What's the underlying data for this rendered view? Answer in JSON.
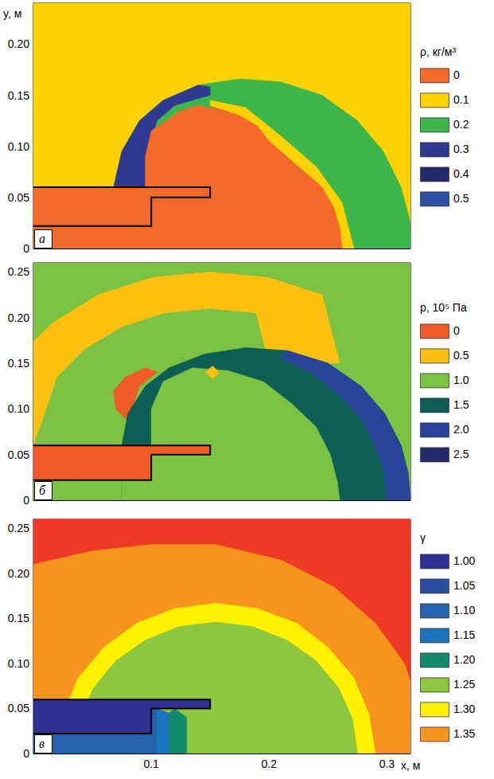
{
  "chart_data": [
    {
      "type": "contour",
      "panel": "а",
      "y_label": "y, м",
      "tick_labels": "y",
      "grid": false,
      "xlim": [
        0,
        0.32
      ],
      "xticks": [
        0.1,
        0.2,
        0.3
      ],
      "ylim": [
        0,
        0.24
      ],
      "yticks": [
        0,
        0.05,
        {
          "value": 0.1,
          "label": "0.10"
        },
        0.15,
        {
          "value": 0.2,
          "label": "0.20"
        }
      ],
      "color_bar": {
        "title": "ρ, кг/м³",
        "levels": [
          0,
          0.1,
          0.2,
          0.3,
          0.4,
          0.5
        ],
        "colors": [
          "#f26b2b",
          "#ffd200",
          "#3cb54a",
          "#2e3a92",
          "#25286b",
          "#2f4fa5"
        ]
      },
      "regions": [
        {
          "value": 0.1,
          "points": [
            [
              0,
              0
            ],
            [
              0.32,
              0
            ],
            [
              0.32,
              0.24
            ],
            [
              0,
              0.24
            ]
          ]
        },
        {
          "value": 0.2,
          "points": [
            [
              0.068,
              0.06
            ],
            [
              0.075,
              0.095
            ],
            [
              0.09,
              0.125
            ],
            [
              0.11,
              0.145
            ],
            [
              0.14,
              0.16
            ],
            [
              0.175,
              0.166
            ],
            [
              0.21,
              0.163
            ],
            [
              0.245,
              0.15
            ],
            [
              0.275,
              0.125
            ],
            [
              0.297,
              0.095
            ],
            [
              0.312,
              0.06
            ],
            [
              0.319,
              0.03
            ],
            [
              0.322,
              0
            ],
            [
              0.068,
              0
            ]
          ]
        },
        {
          "value": 0.3,
          "points": [
            [
              0.068,
              0.06
            ],
            [
              0.075,
              0.095
            ],
            [
              0.09,
              0.125
            ],
            [
              0.11,
              0.145
            ],
            [
              0.14,
              0.16
            ],
            [
              0.15,
              0.158
            ],
            [
              0.15,
              0.15
            ],
            [
              0.12,
              0.14
            ],
            [
              0.105,
              0.125
            ],
            [
              0.098,
              0.1
            ],
            [
              0.095,
              0.07
            ],
            [
              0.1,
              0.06
            ]
          ]
        },
        {
          "value": 0.1,
          "points": [
            [
              0.15,
              0.145
            ],
            [
              0.18,
              0.138
            ],
            [
              0.21,
              0.11
            ],
            [
              0.24,
              0.08
            ],
            [
              0.262,
              0.045
            ],
            [
              0.272,
              0
            ],
            [
              0.262,
              0
            ],
            [
              0.255,
              0.04
            ],
            [
              0.23,
              0.075
            ],
            [
              0.2,
              0.105
            ],
            [
              0.175,
              0.13
            ],
            [
              0.15,
              0.14
            ]
          ]
        },
        {
          "value": 0,
          "points": [
            [
              0,
              0
            ],
            [
              0,
              0.06
            ],
            [
              0.095,
              0.06
            ],
            [
              0.095,
              0.09
            ],
            [
              0.1,
              0.115
            ],
            [
              0.115,
              0.127
            ],
            [
              0.125,
              0.135
            ],
            [
              0.14,
              0.14
            ],
            [
              0.16,
              0.136
            ],
            [
              0.175,
              0.13
            ],
            [
              0.19,
              0.12
            ],
            [
              0.2,
              0.105
            ],
            [
              0.215,
              0.09
            ],
            [
              0.23,
              0.075
            ],
            [
              0.245,
              0.06
            ],
            [
              0.255,
              0.04
            ],
            [
              0.26,
              0.02
            ],
            [
              0.262,
              0
            ]
          ]
        }
      ],
      "body": [
        [
          0,
          0.06
        ],
        [
          0.15,
          0.06
        ],
        [
          0.15,
          0.05
        ],
        [
          0.1,
          0.05
        ],
        [
          0.1,
          0.022
        ],
        [
          0,
          0.022
        ]
      ]
    },
    {
      "type": "contour",
      "panel": "б",
      "tick_labels": "y",
      "grid": false,
      "xlim": [
        0,
        0.32
      ],
      "xticks": [
        0.1,
        0.2,
        0.3
      ],
      "ylim": [
        0,
        0.26
      ],
      "yticks": [
        0,
        0.05,
        {
          "value": 0.1,
          "label": "0.10"
        },
        0.15,
        {
          "value": 0.2,
          "label": "0.20"
        },
        0.25
      ],
      "color_bar": {
        "title": "p, 10⁵ Па",
        "levels": [
          0,
          0.5,
          {
            "value": 1,
            "label": "1.0"
          },
          1.5,
          {
            "value": 2,
            "label": "2.0"
          },
          2.5
        ],
        "colors": [
          "#f15a29",
          "#fdc010",
          "#7cc242",
          "#0d5f55",
          "#29439b",
          "#262a6d"
        ]
      },
      "regions": [
        {
          "value": 1,
          "points": [
            [
              0,
              0
            ],
            [
              0.32,
              0
            ],
            [
              0.32,
              0.26
            ],
            [
              0,
              0.26
            ]
          ]
        },
        {
          "value": 0.5,
          "points": [
            [
              -0.04,
              0.06
            ],
            [
              -0.015,
              0.155
            ],
            [
              0.016,
              0.194
            ],
            [
              0.055,
              0.225
            ],
            [
              0.101,
              0.244
            ],
            [
              0.15,
              0.25
            ],
            [
              0.199,
              0.244
            ],
            [
              0.245,
              0.225
            ],
            [
              0.26,
              0.15
            ],
            [
              0.2,
              0.15
            ],
            [
              0.189,
              0.205
            ],
            [
              0.15,
              0.21
            ],
            [
              0.111,
              0.205
            ],
            [
              0.075,
              0.19
            ],
            [
              0.044,
              0.166
            ],
            [
              0.02,
              0.135
            ],
            [
              0,
              0.06
            ]
          ]
        },
        {
          "value": 0,
          "points": [
            [
              0.085,
              0.08
            ],
            [
              0.07,
              0.1
            ],
            [
              0.068,
              0.12
            ],
            [
              0.078,
              0.135
            ],
            [
              0.095,
              0.145
            ],
            [
              0.105,
              0.14
            ],
            [
              0.09,
              0.125
            ],
            [
              0.085,
              0.105
            ],
            [
              0.09,
              0.09
            ]
          ]
        },
        {
          "value": 1.5,
          "points": [
            [
              0.075,
              0.06
            ],
            [
              0.08,
              0.095
            ],
            [
              0.095,
              0.125
            ],
            [
              0.115,
              0.145
            ],
            [
              0.145,
              0.16
            ],
            [
              0.18,
              0.167
            ],
            [
              0.215,
              0.164
            ],
            [
              0.25,
              0.15
            ],
            [
              0.278,
              0.125
            ],
            [
              0.298,
              0.095
            ],
            [
              0.312,
              0.06
            ],
            [
              0.318,
              0.03
            ],
            [
              0.32,
              0
            ],
            [
              0.075,
              0
            ]
          ]
        },
        {
          "value": 2,
          "points": [
            [
              0.215,
              0.164
            ],
            [
              0.25,
              0.15
            ],
            [
              0.278,
              0.125
            ],
            [
              0.298,
              0.095
            ],
            [
              0.312,
              0.06
            ],
            [
              0.318,
              0.03
            ],
            [
              0.32,
              0
            ],
            [
              0.3,
              0
            ],
            [
              0.298,
              0.03
            ],
            [
              0.29,
              0.06
            ],
            [
              0.278,
              0.09
            ],
            [
              0.26,
              0.115
            ],
            [
              0.235,
              0.14
            ],
            [
              0.21,
              0.155
            ]
          ]
        },
        {
          "value": 1,
          "points": [
            [
              0.1,
              0.06
            ],
            [
              0.1,
              0.1
            ],
            [
              0.11,
              0.13
            ],
            [
              0.135,
              0.145
            ],
            [
              0.165,
              0.142
            ],
            [
              0.195,
              0.13
            ],
            [
              0.22,
              0.105
            ],
            [
              0.24,
              0.08
            ],
            [
              0.252,
              0.05
            ],
            [
              0.258,
              0.02
            ],
            [
              0.26,
              0
            ],
            [
              0.075,
              0
            ],
            [
              0.075,
              0.022
            ]
          ]
        },
        {
          "value": 0.5,
          "points": [
            [
              0.146,
              0.14
            ],
            [
              0.152,
              0.133
            ],
            [
              0.158,
              0.14
            ],
            [
              0.152,
              0.147
            ]
          ]
        },
        {
          "value": 0,
          "points": [
            [
              0,
              0.022
            ],
            [
              0.1,
              0.022
            ],
            [
              0.1,
              0.05
            ],
            [
              0.15,
              0.05
            ],
            [
              0.15,
              0.06
            ],
            [
              0,
              0.06
            ]
          ]
        }
      ],
      "body": [
        [
          0,
          0.06
        ],
        [
          0.15,
          0.06
        ],
        [
          0.15,
          0.05
        ],
        [
          0.1,
          0.05
        ],
        [
          0.1,
          0.022
        ],
        [
          0,
          0.022
        ]
      ]
    },
    {
      "type": "contour",
      "panel": "в",
      "x_label": "x, м",
      "grid": false,
      "xlim": [
        0,
        0.32
      ],
      "xticks": [
        0.1,
        0.2,
        0.3
      ],
      "ylim": [
        0,
        0.26
      ],
      "yticks": [
        0,
        0.05,
        {
          "value": 0.1,
          "label": "0.10"
        },
        0.15,
        {
          "value": 0.2,
          "label": "0.20"
        },
        0.25
      ],
      "color_bar": {
        "title": "γ",
        "levels": [
          {
            "value": 1,
            "label": "1.00"
          },
          1.05,
          {
            "value": 1.1,
            "label": "1.10"
          },
          1.15,
          {
            "value": 1.2,
            "label": "1.20"
          },
          1.25,
          {
            "value": 1.3,
            "label": "1.30"
          },
          1.35
        ],
        "colors": [
          "#2e3192",
          "#2b4ea2",
          "#2563af",
          "#1b75bc",
          "#138a6c",
          "#8dc63f",
          "#fff200",
          "#f7941d"
        ]
      },
      "regions": [
        {
          "value": 1.4,
          "color": "#ee3a24",
          "points": [
            [
              0,
              0
            ],
            [
              0.32,
              0
            ],
            [
              0.32,
              0.26
            ],
            [
              0,
              0.26
            ]
          ]
        },
        {
          "value": 1.35,
          "points": [
            [
              0.33,
              0
            ],
            [
              0.325,
              0.06
            ],
            [
              0.315,
              0.1
            ],
            [
              0.29,
              0.145
            ],
            [
              0.255,
              0.185
            ],
            [
              0.21,
              0.215
            ],
            [
              0.155,
              0.232
            ],
            [
              0.1,
              0.232
            ],
            [
              0.05,
              0.225
            ],
            [
              0,
              0.21
            ],
            [
              -0.01,
              0
            ]
          ]
        },
        {
          "value": 1.3,
          "points": [
            [
              0.29,
              0
            ],
            [
              0.285,
              0.043
            ],
            [
              0.272,
              0.084
            ],
            [
              0.25,
              0.118
            ],
            [
              0.223,
              0.145
            ],
            [
              0.19,
              0.161
            ],
            [
              0.155,
              0.167
            ],
            [
              0.12,
              0.161
            ],
            [
              0.088,
              0.145
            ],
            [
              0.06,
              0.118
            ],
            [
              0.038,
              0.084
            ],
            [
              0.025,
              0.043
            ],
            [
              0.02,
              0
            ]
          ]
        },
        {
          "value": 1.25,
          "points": [
            [
              0.275,
              0
            ],
            [
              0.271,
              0.038
            ],
            [
              0.259,
              0.073
            ],
            [
              0.24,
              0.103
            ],
            [
              0.215,
              0.126
            ],
            [
              0.186,
              0.141
            ],
            [
              0.155,
              0.146
            ],
            [
              0.124,
              0.141
            ],
            [
              0.095,
              0.126
            ],
            [
              0.07,
              0.103
            ],
            [
              0.051,
              0.073
            ],
            [
              0.039,
              0.038
            ],
            [
              0.035,
              0
            ]
          ]
        },
        {
          "value": 1.1,
          "points": [
            [
              0,
              0
            ],
            [
              0.105,
              0
            ],
            [
              0.105,
              0.05
            ],
            [
              0,
              0.05
            ]
          ]
        },
        {
          "value": 1.15,
          "points": [
            [
              0.105,
              0
            ],
            [
              0.115,
              0
            ],
            [
              0.115,
              0.045
            ],
            [
              0.105,
              0.05
            ]
          ]
        },
        {
          "value": 1.2,
          "points": [
            [
              0.115,
              0
            ],
            [
              0.13,
              0
            ],
            [
              0.13,
              0.04
            ],
            [
              0.12,
              0.05
            ],
            [
              0.115,
              0.045
            ]
          ]
        },
        {
          "value": 1,
          "points": [
            [
              0,
              0.022
            ],
            [
              0.1,
              0.022
            ],
            [
              0.1,
              0.05
            ],
            [
              0.15,
              0.05
            ],
            [
              0.15,
              0.06
            ],
            [
              0,
              0.06
            ]
          ]
        }
      ],
      "body": [
        [
          0,
          0.06
        ],
        [
          0.15,
          0.06
        ],
        [
          0.15,
          0.05
        ],
        [
          0.1,
          0.05
        ],
        [
          0.1,
          0.022
        ],
        [
          0,
          0.022
        ]
      ]
    }
  ]
}
